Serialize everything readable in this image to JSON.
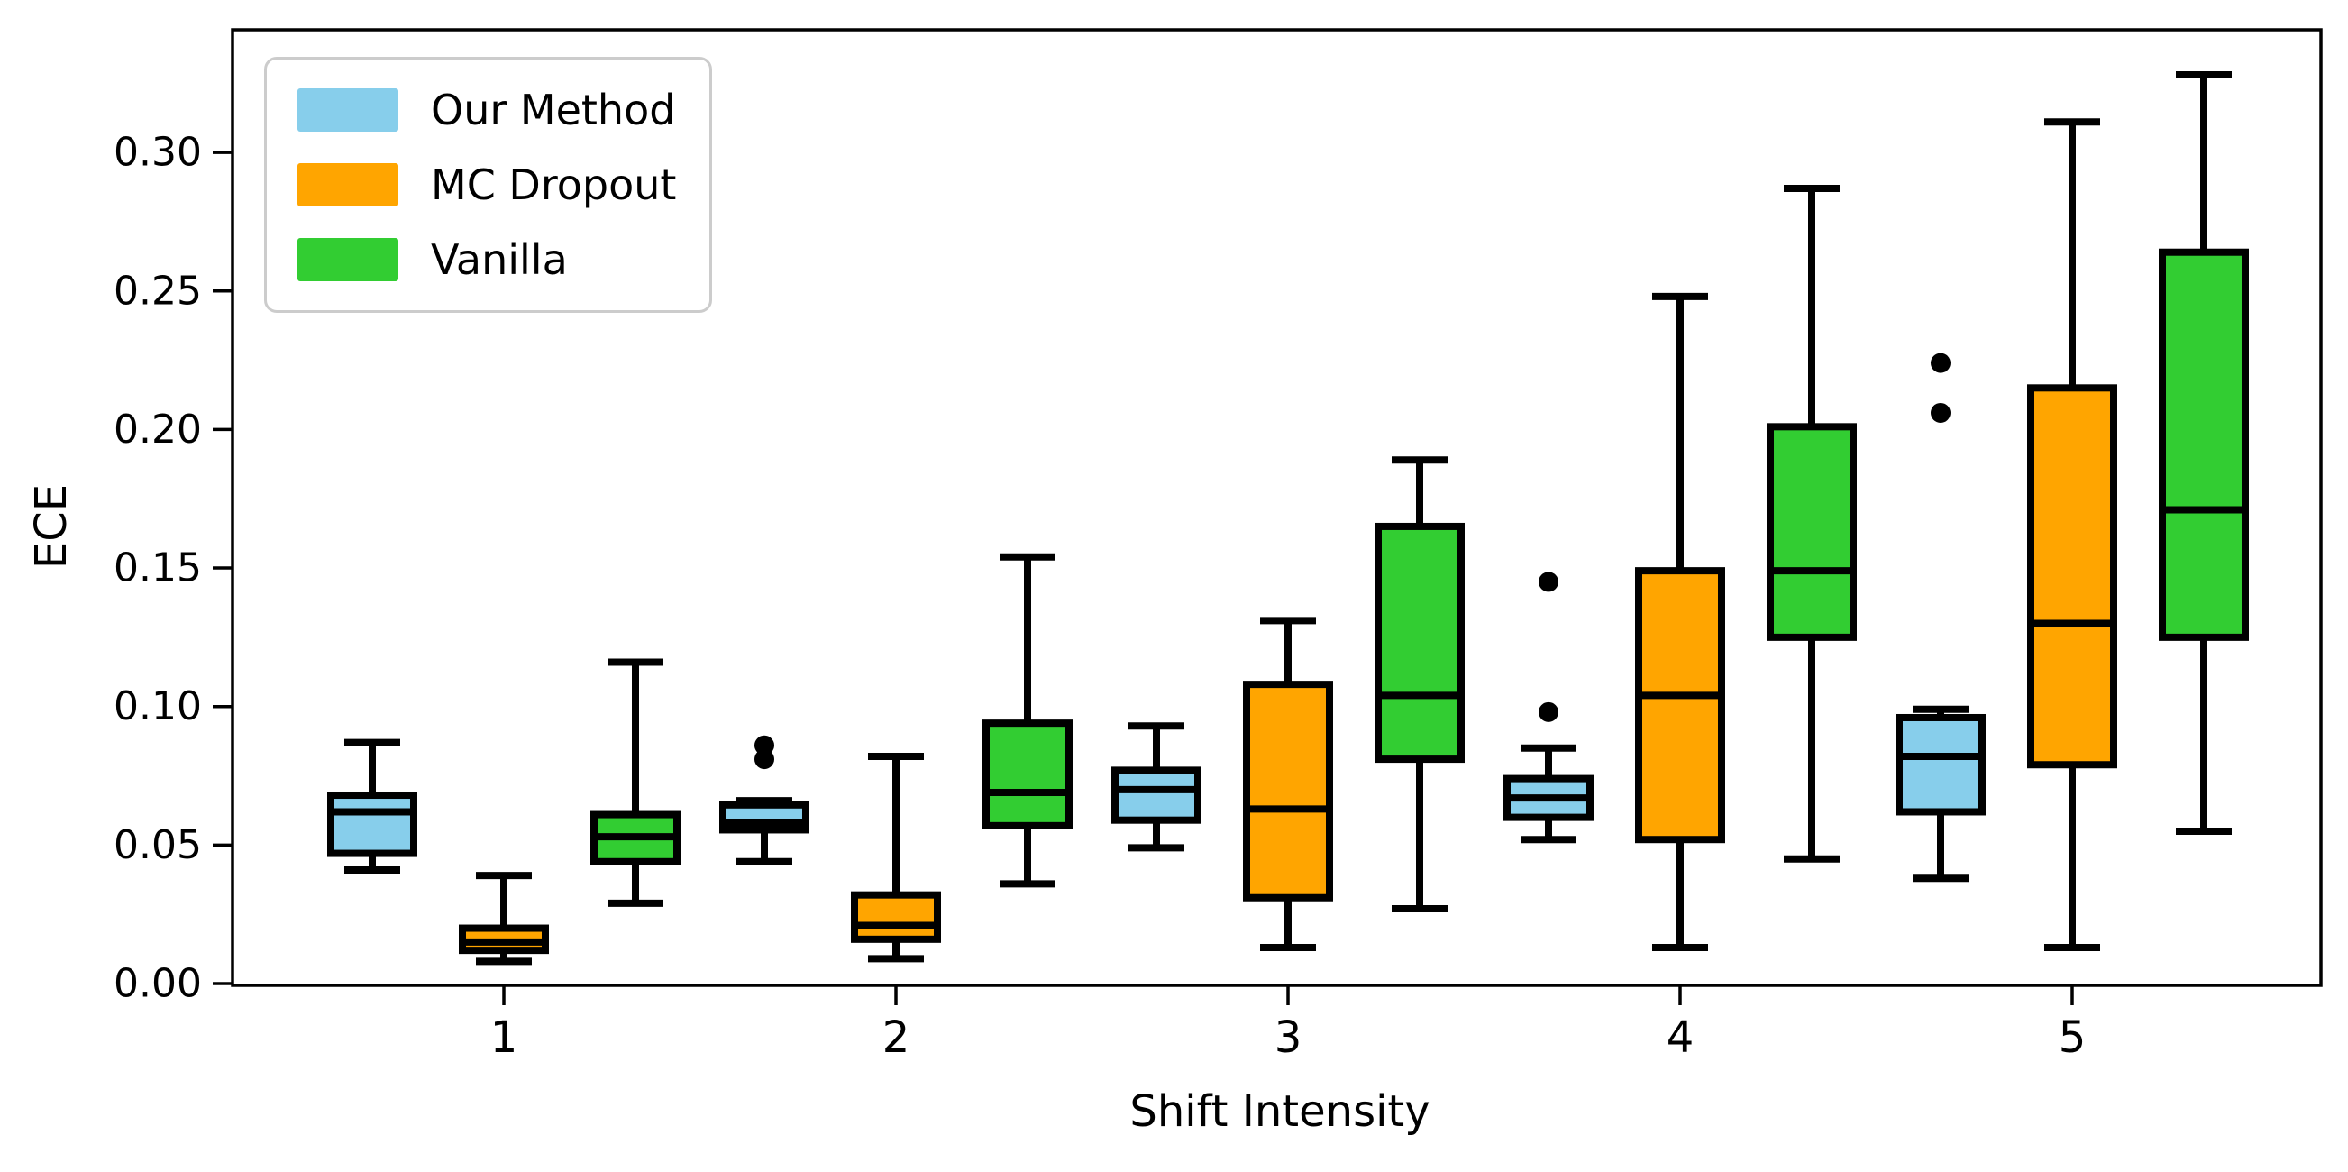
{
  "chart_data": {
    "type": "boxplot",
    "title": "",
    "xlabel": "Shift Intensity",
    "ylabel": "ECE",
    "categories": [
      1,
      2,
      3,
      4,
      5
    ],
    "y_ticks": [
      0.0,
      0.05,
      0.1,
      0.15,
      0.2,
      0.25,
      0.3
    ],
    "ylim": [
      -0.002,
      0.345
    ],
    "grid": false,
    "legend_position": "upper left",
    "series": [
      {
        "name": "Our Method",
        "color": "#87CEEB",
        "boxes": [
          {
            "whislo": 0.041,
            "q1": 0.047,
            "med": 0.062,
            "q3": 0.068,
            "whishi": 0.087,
            "outliers": []
          },
          {
            "whislo": 0.044,
            "q1": 0.0555,
            "med": 0.058,
            "q3": 0.0645,
            "whishi": 0.066,
            "outliers": [
              0.081,
              0.086
            ]
          },
          {
            "whislo": 0.049,
            "q1": 0.059,
            "med": 0.07,
            "q3": 0.077,
            "whishi": 0.093,
            "outliers": []
          },
          {
            "whislo": 0.052,
            "q1": 0.06,
            "med": 0.067,
            "q3": 0.074,
            "whishi": 0.085,
            "outliers": [
              0.098,
              0.145
            ]
          },
          {
            "whislo": 0.038,
            "q1": 0.062,
            "med": 0.082,
            "q3": 0.096,
            "whishi": 0.099,
            "outliers": [
              0.206,
              0.224
            ]
          }
        ]
      },
      {
        "name": "MC Dropout",
        "color": "#FFA500",
        "boxes": [
          {
            "whislo": 0.008,
            "q1": 0.012,
            "med": 0.015,
            "q3": 0.02,
            "whishi": 0.039,
            "outliers": []
          },
          {
            "whislo": 0.009,
            "q1": 0.016,
            "med": 0.021,
            "q3": 0.032,
            "whishi": 0.082,
            "outliers": []
          },
          {
            "whislo": 0.013,
            "q1": 0.031,
            "med": 0.063,
            "q3": 0.108,
            "whishi": 0.131,
            "outliers": []
          },
          {
            "whislo": 0.013,
            "q1": 0.052,
            "med": 0.104,
            "q3": 0.149,
            "whishi": 0.248,
            "outliers": []
          },
          {
            "whislo": 0.013,
            "q1": 0.079,
            "med": 0.13,
            "q3": 0.215,
            "whishi": 0.311,
            "outliers": []
          }
        ]
      },
      {
        "name": "Vanilla",
        "color": "#32CD32",
        "boxes": [
          {
            "whislo": 0.029,
            "q1": 0.044,
            "med": 0.053,
            "q3": 0.061,
            "whishi": 0.116,
            "outliers": []
          },
          {
            "whislo": 0.036,
            "q1": 0.057,
            "med": 0.069,
            "q3": 0.094,
            "whishi": 0.154,
            "outliers": []
          },
          {
            "whislo": 0.027,
            "q1": 0.081,
            "med": 0.104,
            "q3": 0.165,
            "whishi": 0.189,
            "outliers": []
          },
          {
            "whislo": 0.045,
            "q1": 0.125,
            "med": 0.149,
            "q3": 0.201,
            "whishi": 0.287,
            "outliers": []
          },
          {
            "whislo": 0.055,
            "q1": 0.125,
            "med": 0.171,
            "q3": 0.264,
            "whishi": 0.328,
            "outliers": []
          }
        ]
      }
    ]
  }
}
